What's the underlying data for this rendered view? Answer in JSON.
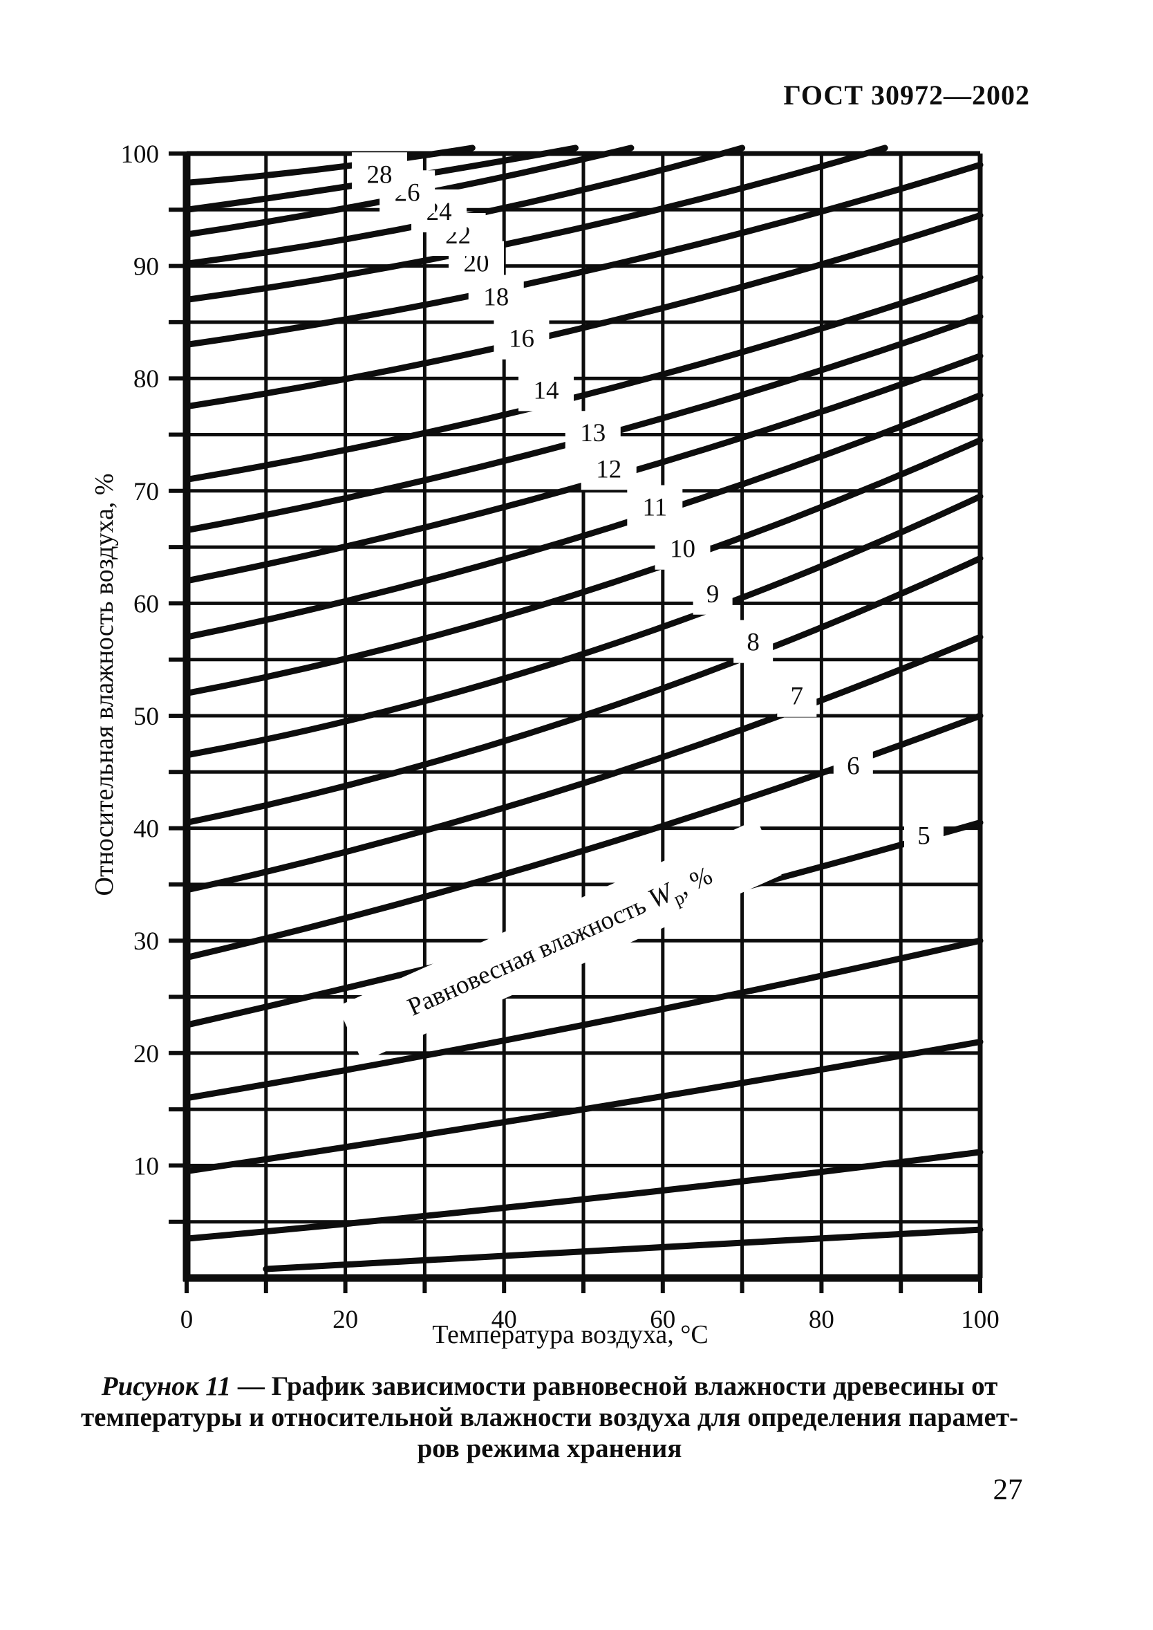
{
  "page": {
    "header_title": "ГОСТ 30972—2002",
    "page_number": "27"
  },
  "caption": {
    "figure_label": "Рисунок 11",
    "line1_rest": " — График зависимости равновесной влажности древесины от",
    "line2": "температуры и относительной влажности воздуха для определения парамет-",
    "line3": "ров режима хранения"
  },
  "chart_data": {
    "type": "line",
    "title": "",
    "xlabel": "Температура воздуха, °С",
    "ylabel": "Относительная влажность воздуха, %",
    "xlim": [
      0,
      100
    ],
    "ylim": [
      0,
      100
    ],
    "x_ticks": [
      0,
      20,
      40,
      60,
      80,
      100
    ],
    "y_ticks": [
      10,
      20,
      30,
      40,
      50,
      60,
      70,
      80,
      90,
      100
    ],
    "x_grid_step": 10,
    "y_grid_step": 5,
    "grid": true,
    "ink_color": "#0d0d0d",
    "paper_color": "#ffffff",
    "family_label": {
      "text": "Равновесная влажность",
      "symbol": "W",
      "symbol_sub": "р",
      "suffix": ", %",
      "angle_deg": -24,
      "center_t": 47,
      "center_rh": 30
    },
    "series": [
      {
        "emc": 1,
        "label": null,
        "points": [
          [
            10,
            0.8
          ],
          [
            55,
            2.5
          ],
          [
            100,
            4.3
          ]
        ],
        "label_t": null,
        "label_rh": null
      },
      {
        "emc": 2,
        "label": null,
        "points": [
          [
            0,
            3.5
          ],
          [
            50,
            7.0
          ],
          [
            100,
            11.2
          ]
        ],
        "label_t": null,
        "label_rh": null
      },
      {
        "emc": 3,
        "label": null,
        "points": [
          [
            0,
            9.5
          ],
          [
            50,
            15.0
          ],
          [
            100,
            21.0
          ]
        ],
        "label_t": null,
        "label_rh": null
      },
      {
        "emc": 4,
        "label": null,
        "points": [
          [
            0,
            16.0
          ],
          [
            50,
            22.5
          ],
          [
            100,
            30.0
          ]
        ],
        "label_t": null,
        "label_rh": null
      },
      {
        "emc": 5,
        "label": "5",
        "points": [
          [
            0,
            22.5
          ],
          [
            50,
            31.0
          ],
          [
            100,
            40.5
          ]
        ],
        "label_t": 92.9,
        "label_rh": 39.4
      },
      {
        "emc": 6,
        "label": "6",
        "points": [
          [
            0,
            28.5
          ],
          [
            50,
            38.0
          ],
          [
            100,
            50.0
          ]
        ],
        "label_t": 84.0,
        "label_rh": 45.6
      },
      {
        "emc": 7,
        "label": "7",
        "points": [
          [
            0,
            34.5
          ],
          [
            50,
            44.0
          ],
          [
            100,
            57.0
          ]
        ],
        "label_t": 76.9,
        "label_rh": 51.8
      },
      {
        "emc": 8,
        "label": "8",
        "points": [
          [
            0,
            40.5
          ],
          [
            50,
            50.0
          ],
          [
            100,
            64.0
          ]
        ],
        "label_t": 71.4,
        "label_rh": 56.6
      },
      {
        "emc": 9,
        "label": "9",
        "points": [
          [
            0,
            46.5
          ],
          [
            50,
            55.5
          ],
          [
            100,
            69.5
          ]
        ],
        "label_t": 66.3,
        "label_rh": 60.9
      },
      {
        "emc": 10,
        "label": "10",
        "points": [
          [
            0,
            52.0
          ],
          [
            50,
            61.0
          ],
          [
            100,
            74.5
          ]
        ],
        "label_t": 62.5,
        "label_rh": 64.9
      },
      {
        "emc": 11,
        "label": "11",
        "points": [
          [
            0,
            57.0
          ],
          [
            50,
            66.0
          ],
          [
            100,
            78.5
          ]
        ],
        "label_t": 59.0,
        "label_rh": 68.6
      },
      {
        "emc": 12,
        "label": "12",
        "points": [
          [
            0,
            62.0
          ],
          [
            50,
            70.5
          ],
          [
            100,
            82.0
          ]
        ],
        "label_t": 53.2,
        "label_rh": 72.0
      },
      {
        "emc": 13,
        "label": "13",
        "points": [
          [
            0,
            66.5
          ],
          [
            50,
            74.5
          ],
          [
            100,
            85.5
          ]
        ],
        "label_t": 51.2,
        "label_rh": 75.2
      },
      {
        "emc": 14,
        "label": "14",
        "points": [
          [
            0,
            71.0
          ],
          [
            50,
            78.5
          ],
          [
            100,
            89.0
          ]
        ],
        "label_t": 45.3,
        "label_rh": 79.0
      },
      {
        "emc": 16,
        "label": "16",
        "points": [
          [
            0,
            77.5
          ],
          [
            50,
            84.5
          ],
          [
            100,
            94.5
          ]
        ],
        "label_t": 42.2,
        "label_rh": 83.6
      },
      {
        "emc": 18,
        "label": "18",
        "points": [
          [
            0,
            83.0
          ],
          [
            50,
            89.5
          ],
          [
            100,
            99.0
          ]
        ],
        "label_t": 39.0,
        "label_rh": 87.3
      },
      {
        "emc": 20,
        "label": "20",
        "points": [
          [
            0,
            87.0
          ],
          [
            44,
            92.5
          ],
          [
            88,
            100.5
          ]
        ],
        "label_t": 36.5,
        "label_rh": 90.3
      },
      {
        "emc": 22,
        "label": "22",
        "points": [
          [
            0,
            90.2
          ],
          [
            35,
            94.4
          ],
          [
            70,
            100.5
          ]
        ],
        "label_t": 34.2,
        "label_rh": 92.8
      },
      {
        "emc": 24,
        "label": "24",
        "points": [
          [
            0,
            92.8
          ],
          [
            28,
            96.2
          ],
          [
            56,
            100.5
          ]
        ],
        "label_t": 31.8,
        "label_rh": 94.9
      },
      {
        "emc": 26,
        "label": "26",
        "points": [
          [
            0,
            95.0
          ],
          [
            25,
            97.6
          ],
          [
            49,
            100.5
          ]
        ],
        "label_t": 27.8,
        "label_rh": 96.6
      },
      {
        "emc": 28,
        "label": "28",
        "points": [
          [
            0,
            97.4
          ],
          [
            18,
            98.7
          ],
          [
            36,
            100.5
          ]
        ],
        "label_t": 24.3,
        "label_rh": 98.2
      }
    ]
  }
}
